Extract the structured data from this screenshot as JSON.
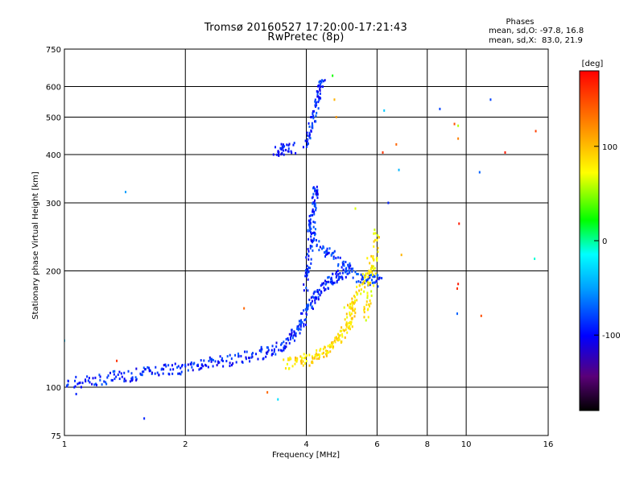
{
  "header": {
    "title": "Tromsø 20160527 17:20:00-17:21:43",
    "subtitle": "RwPretec (8p)",
    "stats_heading": "Phases",
    "stats_o": "mean, sd,O: -97.8, 16.8",
    "stats_x": "mean, sd,X:  83.0, 21.9"
  },
  "colorbar": {
    "label": "[deg]",
    "ticks": [
      "100",
      "0",
      "-100"
    ],
    "tick_values": [
      100,
      0,
      -100
    ],
    "range": [
      -180,
      180
    ]
  },
  "chart_data": {
    "type": "scatter",
    "title": "Tromsø 20160527 17:20:00-17:21:43",
    "subtitle": "RwPretec (8p)",
    "xlabel": "Frequency [MHz]",
    "ylabel": "Stationary phase Virtual Height [km]",
    "x_scale": "log",
    "y_scale": "log",
    "xlim": [
      1,
      16
    ],
    "ylim": [
      75,
      750
    ],
    "x_ticks": [
      1,
      2,
      4,
      6,
      8,
      10,
      16
    ],
    "x_tick_labels": [
      "1",
      "2",
      "4",
      "6",
      "8",
      "10",
      "16"
    ],
    "y_ticks": [
      75,
      100,
      200,
      300,
      400,
      500,
      600,
      750
    ],
    "y_tick_labels": [
      "75",
      "100",
      "200",
      "300",
      "400",
      "500",
      "600",
      "750"
    ],
    "grid": true,
    "color_scale": "rainbow",
    "color_meaning": "phase [deg]",
    "traces": [
      {
        "freq": [
          1.0,
          1.15,
          1.3,
          1.45,
          1.6,
          1.8,
          2.0,
          2.2,
          2.4,
          2.7,
          3.0,
          3.3,
          3.55,
          3.75,
          3.9,
          4.0
        ],
        "height": [
          102,
          104,
          106,
          107,
          109,
          111,
          112,
          114,
          116,
          118,
          121,
          125,
          130,
          137,
          145,
          160
        ],
        "phase": -100
      },
      {
        "freq": [
          4.0,
          4.05,
          4.1,
          4.15,
          4.2,
          4.25
        ],
        "height": [
          180,
          210,
          250,
          280,
          310,
          330
        ],
        "phase": -100
      },
      {
        "freq": [
          4.05,
          4.3,
          4.6,
          5.0,
          5.4,
          5.8,
          6.1
        ],
        "height": [
          260,
          235,
          220,
          205,
          192,
          190,
          188
        ],
        "phase": -95
      },
      {
        "freq": [
          4.05,
          4.2,
          4.4,
          4.6,
          4.8,
          5.1
        ],
        "height": [
          160,
          170,
          180,
          188,
          195,
          200
        ],
        "phase": -100
      },
      {
        "freq": [
          4.0,
          4.1,
          4.2,
          4.3,
          4.38
        ],
        "height": [
          420,
          470,
          520,
          580,
          630
        ],
        "phase": -100
      },
      {
        "freq": [
          3.35,
          3.5,
          3.7
        ],
        "height": [
          410,
          412,
          415
        ],
        "phase": -105
      },
      {
        "freq": [
          3.55,
          3.8,
          4.05,
          4.3,
          4.55,
          4.8,
          5.0,
          5.15,
          5.25
        ],
        "height": [
          115,
          116,
          118,
          121,
          126,
          132,
          140,
          150,
          165
        ],
        "phase": 95
      },
      {
        "freq": [
          5.05,
          5.3,
          5.6,
          5.85
        ],
        "height": [
          155,
          170,
          190,
          220
        ],
        "phase": 90
      },
      {
        "freq": [
          5.6,
          5.75,
          5.9,
          6.0
        ],
        "height": [
          150,
          175,
          210,
          255
        ],
        "phase": 85
      }
    ],
    "scatter_points": [
      {
        "x": 1.42,
        "y": 320,
        "phase": -60
      },
      {
        "x": 4.65,
        "y": 640,
        "phase": 20
      },
      {
        "x": 4.7,
        "y": 555,
        "phase": 110
      },
      {
        "x": 4.75,
        "y": 500,
        "phase": 120
      },
      {
        "x": 6.25,
        "y": 520,
        "phase": -40
      },
      {
        "x": 8.6,
        "y": 525,
        "phase": -90
      },
      {
        "x": 11.5,
        "y": 555,
        "phase": -90
      },
      {
        "x": 9.35,
        "y": 480,
        "phase": 150
      },
      {
        "x": 9.55,
        "y": 475,
        "phase": 60
      },
      {
        "x": 9.55,
        "y": 440,
        "phase": 130
      },
      {
        "x": 6.7,
        "y": 425,
        "phase": 140
      },
      {
        "x": 6.2,
        "y": 405,
        "phase": 160
      },
      {
        "x": 12.5,
        "y": 405,
        "phase": 170
      },
      {
        "x": 14.9,
        "y": 460,
        "phase": 155
      },
      {
        "x": 6.8,
        "y": 365,
        "phase": -50
      },
      {
        "x": 10.8,
        "y": 360,
        "phase": -80
      },
      {
        "x": 9.6,
        "y": 265,
        "phase": 170
      },
      {
        "x": 6.9,
        "y": 220,
        "phase": 110
      },
      {
        "x": 14.8,
        "y": 215,
        "phase": -10
      },
      {
        "x": 9.55,
        "y": 185,
        "phase": 170
      },
      {
        "x": 9.5,
        "y": 180,
        "phase": 160
      },
      {
        "x": 9.5,
        "y": 155,
        "phase": -80
      },
      {
        "x": 10.9,
        "y": 153,
        "phase": 150
      },
      {
        "x": 1.0,
        "y": 132,
        "phase": -40
      },
      {
        "x": 1.35,
        "y": 117,
        "phase": 160
      },
      {
        "x": 2.8,
        "y": 160,
        "phase": 140
      },
      {
        "x": 3.2,
        "y": 97,
        "phase": 140
      },
      {
        "x": 3.4,
        "y": 93,
        "phase": -30
      },
      {
        "x": 1.58,
        "y": 83,
        "phase": -100
      },
      {
        "x": 1.07,
        "y": 96,
        "phase": -100
      },
      {
        "x": 5.3,
        "y": 290,
        "phase": 70
      },
      {
        "x": 6.4,
        "y": 300,
        "phase": -100
      }
    ]
  },
  "colors": {
    "ink": "#000000",
    "background": "#ffffff"
  }
}
